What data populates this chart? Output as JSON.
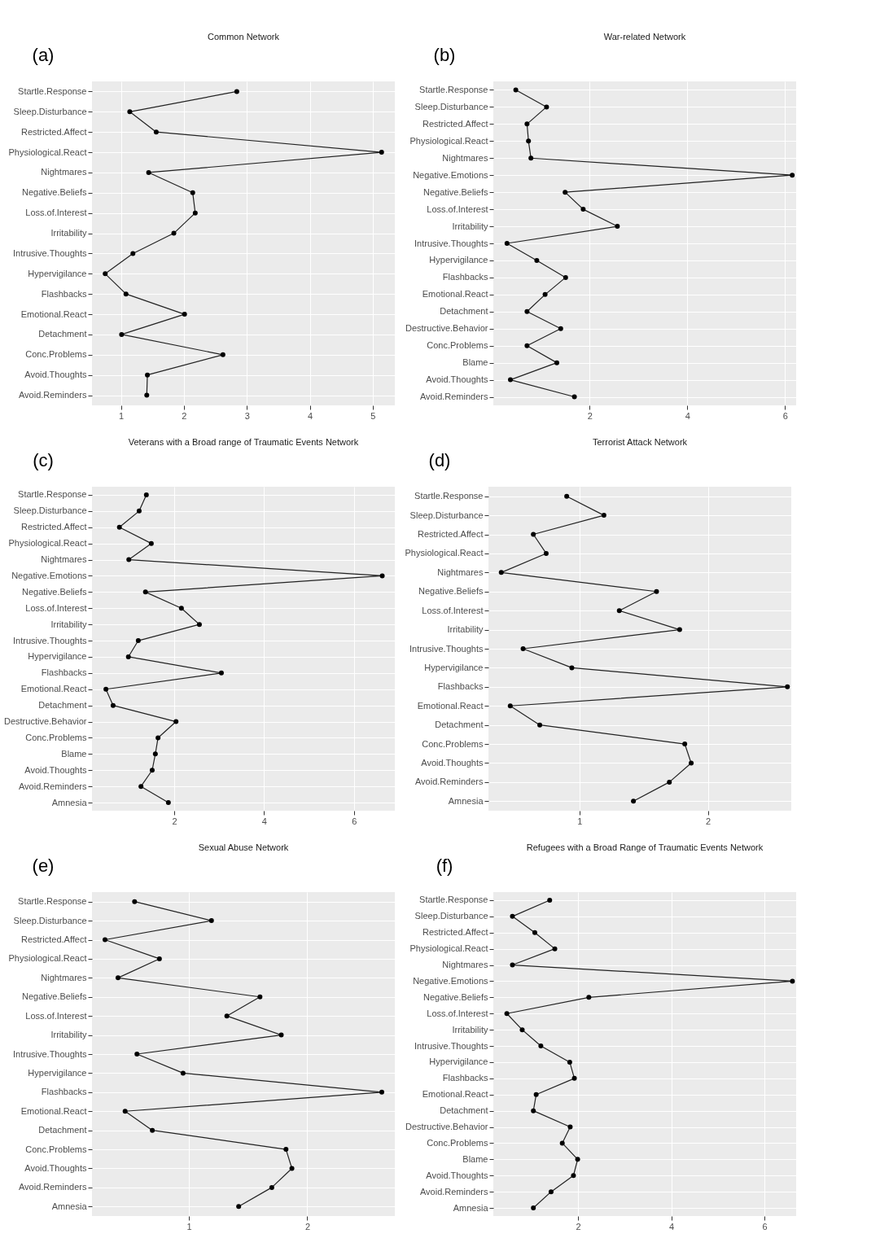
{
  "chart_data": [
    {
      "type": "line",
      "orientation": "horizontal",
      "title": "Common Network",
      "annotations": [
        "(a)"
      ],
      "categories": [
        "Startle.Response",
        "Sleep.Disturbance",
        "Restricted.Affect",
        "Physiological.React",
        "Nightmares",
        "Negative.Beliefs",
        "Loss.of.Interest",
        "Irritability",
        "Intrusive.Thoughts",
        "Hypervigilance",
        "Flashbacks",
        "Emotional.React",
        "Detachment",
        "Conc.Problems",
        "Avoid.Thoughts",
        "Avoid.Reminders"
      ],
      "series": [
        {
          "color": "#222222",
          "values": [
            2.84,
            1.14,
            1.56,
            5.14,
            1.44,
            2.14,
            2.18,
            1.84,
            1.19,
            0.75,
            1.08,
            2.01,
            1.01,
            2.62,
            1.42,
            1.41
          ]
        }
      ],
      "xlim": [
        0.54,
        5.35
      ],
      "xticks": [
        1,
        2,
        3,
        4,
        5
      ],
      "grid": true,
      "marker": "circle"
    },
    {
      "type": "line",
      "orientation": "horizontal",
      "title": "War-related Network",
      "annotations": [
        "(b)"
      ],
      "categories": [
        "Startle.Response",
        "Sleep.Disturbance",
        "Restricted.Affect",
        "Physiological.React",
        "Nightmares",
        "Negative.Emotions",
        "Negative.Beliefs",
        "Loss.of.Interest",
        "Irritability",
        "Intrusive.Thoughts",
        "Hypervigilance",
        "Flashbacks",
        "Emotional.React",
        "Detachment",
        "Destructive.Behavior",
        "Conc.Problems",
        "Blame",
        "Avoid.Thoughts",
        "Avoid.Reminders"
      ],
      "series": [
        {
          "color": "#222222",
          "values": [
            0.49,
            1.12,
            0.72,
            0.75,
            0.8,
            6.15,
            1.5,
            1.87,
            2.57,
            0.31,
            0.92,
            1.51,
            1.09,
            0.72,
            1.41,
            0.72,
            1.33,
            0.38,
            1.69
          ]
        }
      ],
      "xlim": [
        0.03,
        6.23
      ],
      "xticks": [
        2,
        4,
        6
      ],
      "grid": true,
      "marker": "circle"
    },
    {
      "type": "line",
      "orientation": "horizontal",
      "title": "Veterans with a Broad range of Traumatic Events Network",
      "annotations": [
        "(c)"
      ],
      "categories": [
        "Startle.Response",
        "Sleep.Disturbance",
        "Restricted.Affect",
        "Physiological.React",
        "Nightmares",
        "Negative.Emotions",
        "Negative.Beliefs",
        "Loss.of.Interest",
        "Irritability",
        "Intrusive.Thoughts",
        "Hypervigilance",
        "Flashbacks",
        "Emotional.React",
        "Detachment",
        "Destructive.Behavior",
        "Conc.Problems",
        "Blame",
        "Avoid.Thoughts",
        "Avoid.Reminders",
        "Amnesia"
      ],
      "series": [
        {
          "color": "#222222",
          "values": [
            1.38,
            1.22,
            0.78,
            1.49,
            0.99,
            6.63,
            1.36,
            2.16,
            2.56,
            1.2,
            0.98,
            3.05,
            0.48,
            0.64,
            2.04,
            1.64,
            1.58,
            1.51,
            1.26,
            1.87
          ]
        }
      ],
      "xlim": [
        0.17,
        6.91
      ],
      "xticks": [
        2,
        4,
        6
      ],
      "grid": true,
      "marker": "circle"
    },
    {
      "type": "line",
      "orientation": "horizontal",
      "title": "Terrorist Attack Network",
      "annotations": [
        "(d)"
      ],
      "categories": [
        "Startle.Response",
        "Sleep.Disturbance",
        "Restricted.Affect",
        "Physiological.React",
        "Nightmares",
        "Negative.Beliefs",
        "Loss.of.Interest",
        "Irritability",
        "Intrusive.Thoughts",
        "Hypervigilance",
        "Flashbacks",
        "Emotional.React",
        "Detachment",
        "Conc.Problems",
        "Avoid.Thoughts",
        "Avoid.Reminders",
        "Amnesia"
      ],
      "series": [
        {
          "color": "#222222",
          "values": [
            0.9,
            1.19,
            0.64,
            0.74,
            0.39,
            1.6,
            1.31,
            1.78,
            0.56,
            0.94,
            2.62,
            0.46,
            0.69,
            1.82,
            1.87,
            1.7,
            1.42
          ]
        }
      ],
      "xlim": [
        0.29,
        2.65
      ],
      "xticks": [
        1,
        2
      ],
      "grid": true,
      "marker": "circle"
    },
    {
      "type": "line",
      "orientation": "horizontal",
      "title": "Sexual Abuse Network",
      "annotations": [
        "(e)"
      ],
      "categories": [
        "Startle.Response",
        "Sleep.Disturbance",
        "Restricted.Affect",
        "Physiological.React",
        "Nightmares",
        "Negative.Beliefs",
        "Loss.of.Interest",
        "Irritability",
        "Intrusive.Thoughts",
        "Hypervigilance",
        "Flashbacks",
        "Emotional.React",
        "Detachment",
        "Conc.Problems",
        "Avoid.Thoughts",
        "Avoid.Reminders",
        "Amnesia"
      ],
      "series": [
        {
          "color": "#222222",
          "values": [
            0.54,
            1.19,
            0.29,
            0.75,
            0.4,
            1.6,
            1.32,
            1.78,
            0.56,
            0.95,
            2.63,
            0.46,
            0.69,
            1.82,
            1.87,
            1.7,
            1.42
          ]
        }
      ],
      "xlim": [
        0.18,
        2.74
      ],
      "xticks": [
        1,
        2
      ],
      "grid": true,
      "marker": "circle"
    },
    {
      "type": "line",
      "orientation": "horizontal",
      "title": "Refugees with a Broad Range of Traumatic Events Network",
      "annotations": [
        "(f)"
      ],
      "categories": [
        "Startle.Response",
        "Sleep.Disturbance",
        "Restricted.Affect",
        "Physiological.React",
        "Nightmares",
        "Negative.Emotions",
        "Negative.Beliefs",
        "Loss.of.Interest",
        "Irritability",
        "Intrusive.Thoughts",
        "Hypervigilance",
        "Flashbacks",
        "Emotional.React",
        "Detachment",
        "Destructive.Behavior",
        "Conc.Problems",
        "Blame",
        "Avoid.Thoughts",
        "Avoid.Reminders",
        "Amnesia"
      ],
      "series": [
        {
          "color": "#222222",
          "values": [
            1.39,
            0.59,
            1.07,
            1.5,
            0.59,
            6.6,
            2.23,
            0.47,
            0.8,
            1.2,
            1.82,
            1.92,
            1.1,
            1.04,
            1.83,
            1.66,
            1.99,
            1.9,
            1.42,
            1.04
          ]
        }
      ],
      "xlim": [
        0.18,
        6.68
      ],
      "xticks": [
        2,
        4,
        6
      ],
      "grid": true,
      "marker": "circle"
    }
  ]
}
